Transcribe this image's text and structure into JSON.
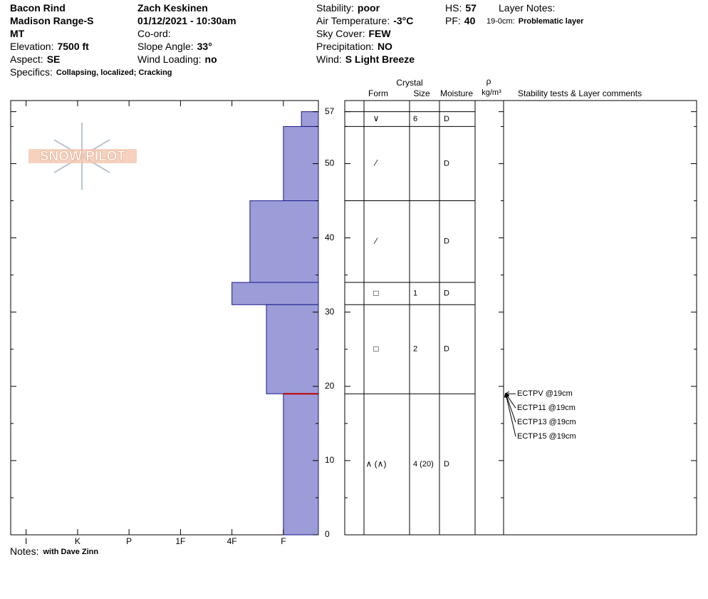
{
  "header": {
    "col1": [
      {
        "value": "Bacon Rind"
      },
      {
        "value": "Madison Range-S"
      },
      {
        "value": "MT"
      },
      {
        "label": "Elevation:",
        "value": "7500 ft"
      },
      {
        "label": "Aspect:",
        "value": "SE"
      },
      {
        "label": "Specifics:",
        "value": "Collapsing, localized; Cracking",
        "small": true
      }
    ],
    "col2": [
      {
        "value": "Zach Keskinen"
      },
      {
        "value": "01/12/2021 - 10:30am"
      },
      {
        "label": "Co-ord:"
      },
      {
        "label": "Slope Angle:",
        "value": "33°"
      },
      {
        "label": "Wind Loading:",
        "value": "no"
      }
    ],
    "col3": [
      {
        "label": "Stability:",
        "value": "poor"
      },
      {
        "label": "Air Temperature:",
        "value": "-3°C"
      },
      {
        "label": "Sky Cover:",
        "value": "FEW"
      },
      {
        "label": "Precipitation:",
        "value": "NO"
      },
      {
        "label": "Wind:",
        "value": "S Light Breeze"
      }
    ],
    "col4": [
      {
        "label": "HS:",
        "value": 57
      },
      {
        "label": "PF:",
        "value": 40
      }
    ],
    "col5": [
      {
        "label": "Layer Notes:"
      },
      {
        "label": "19-0cm:",
        "value": "Problematic layer",
        "small": true
      }
    ]
  },
  "logo": "SNOW PILOT",
  "notes": {
    "label": "Notes:",
    "value": "with Dave Zinn"
  },
  "columns": {
    "crystal": "Crystal",
    "form": "Form",
    "size": "Size",
    "moisture": "Moisture",
    "density": "ρ",
    "density_unit": "kg/m³",
    "comments": "Stability tests & Layer comments"
  },
  "chart_data": {
    "type": "snow-profile",
    "ylim": [
      0,
      58.5
    ],
    "yticks": [
      0,
      10,
      20,
      30,
      40,
      50,
      57
    ],
    "yticks_minor": [
      5,
      15,
      25,
      35,
      45,
      55
    ],
    "xlim": [
      6.3,
      0.32
    ],
    "xticks": [
      {
        "value": 6,
        "label": "I"
      },
      {
        "value": 5,
        "label": "K"
      },
      {
        "value": 4,
        "label": "P"
      },
      {
        "value": 3,
        "label": "1F"
      },
      {
        "value": 2,
        "label": "4F"
      },
      {
        "value": 1,
        "label": "F"
      }
    ],
    "color": "#9c9cd8",
    "critical_layer_depth": 19,
    "layers": [
      {
        "top": 57,
        "bottom": 55,
        "hardness": 0.65,
        "form": "∨",
        "size": "6",
        "moisture": "D"
      },
      {
        "top": 55,
        "bottom": 45,
        "hardness": 1,
        "form": "⁄",
        "moisture": "D"
      },
      {
        "top": 45,
        "bottom": 34,
        "hardness": 1.65,
        "form": "⁄",
        "moisture": "D"
      },
      {
        "top": 34,
        "bottom": 31,
        "hardness": 2,
        "form": "□",
        "size": "1",
        "moisture": "D"
      },
      {
        "top": 31,
        "bottom": 19,
        "hardness": 1.33,
        "form": "□",
        "size": "2",
        "moisture": "D"
      },
      {
        "top": 19,
        "bottom": 0,
        "hardness": 1,
        "form": "∧ (∧)",
        "size": "4 (20)",
        "moisture": "D"
      }
    ],
    "tests": [
      {
        "label": "ECTPV @19cm",
        "depth": 19
      },
      {
        "label": "ECTP11 @19cm",
        "depth": 19
      },
      {
        "label": "ECTP13 @19cm",
        "depth": 19
      },
      {
        "label": "ECTP15 @19cm",
        "depth": 19
      }
    ]
  }
}
